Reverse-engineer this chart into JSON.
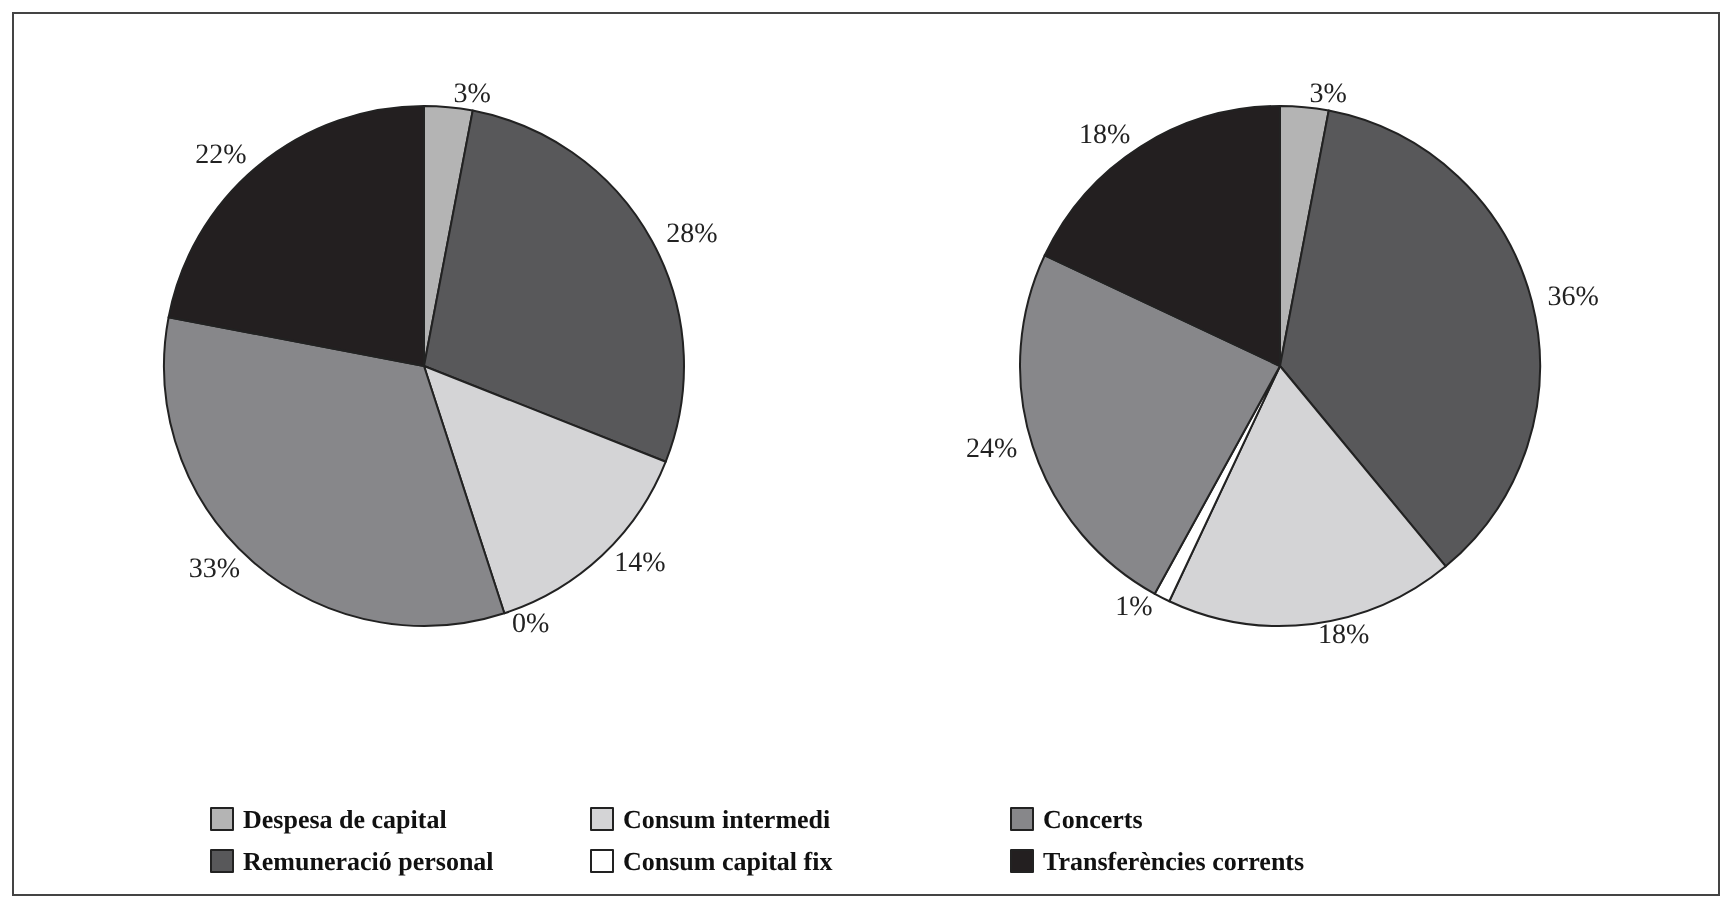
{
  "chart_data": [
    {
      "type": "pie",
      "categories": [
        "Despesa de capital",
        "Remuneració personal",
        "Consum intermedi",
        "Consum capital fix",
        "Concerts",
        "Transferències corrents"
      ],
      "values": [
        3,
        28,
        14,
        0,
        33,
        22
      ],
      "value_labels": [
        "3%",
        "28%",
        "14%",
        "0%",
        "33%",
        "22%"
      ],
      "colors": [
        "#b4b4b4",
        "#58585a",
        "#d4d4d6",
        "#ffffff",
        "#87878a",
        "#231f20"
      ],
      "legend": "bottom"
    },
    {
      "type": "pie",
      "categories": [
        null,
        null,
        null,
        null,
        null,
        null
      ],
      "values": [
        3,
        36,
        18,
        1,
        24,
        18
      ],
      "value_labels": [
        "3%",
        "36%",
        "18%",
        "1%",
        "24%",
        "18%"
      ],
      "colors": [
        "#b4b4b4",
        "#58585a",
        "#d4d4d6",
        "#ffffff",
        "#87878a",
        "#231f20"
      ]
    }
  ]
}
